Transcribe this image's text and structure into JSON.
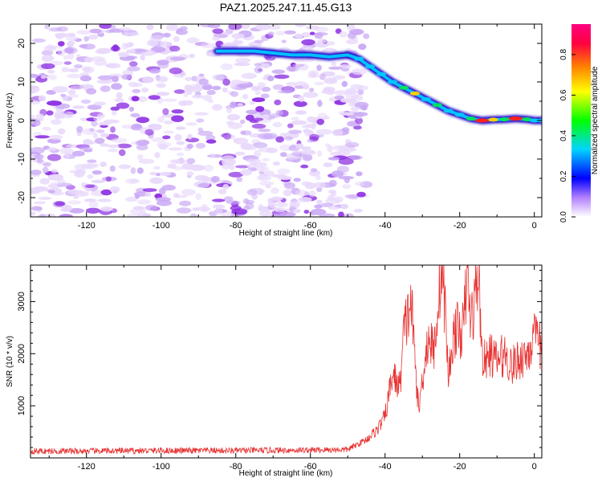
{
  "title": "PAZ1.2025.247.11.45.G13",
  "colors": {
    "snr_line": "#e83232",
    "background": "#ffffff",
    "noise_low": "#e8d8fb",
    "noise_mid": "#c9a8f5",
    "noise_high": "#8a2be2",
    "colorbar": [
      "#ffffff",
      "#7b00ff",
      "#0000ff",
      "#00d5ff",
      "#00ff00",
      "#ffff00",
      "#ff8000",
      "#ff0040",
      "#ff0080"
    ]
  },
  "chart_data": [
    {
      "type": "heatmap",
      "title": "PAZ1.2025.247.11.45.G13",
      "xlabel": "Height of straight line (km)",
      "ylabel": "Frequency (Hz)",
      "xlim": [
        -135,
        2
      ],
      "ylim": [
        -25,
        25
      ],
      "xticks": [
        -120,
        -100,
        -80,
        -60,
        -40,
        -20,
        0
      ],
      "yticks": [
        -20,
        -10,
        0,
        10,
        20
      ],
      "colorbar": {
        "label": "Normalized spectral amplitude",
        "ticks": [
          "0.0",
          "0.2",
          "0.4",
          "0.6",
          "0.8"
        ],
        "range": [
          0,
          0.95
        ]
      },
      "noise_region_x": [
        -135,
        -45
      ],
      "ridge": {
        "x": [
          -85,
          -80,
          -75,
          -70,
          -65,
          -60,
          -55,
          -50,
          -47,
          -44,
          -41,
          -38,
          -35,
          -32,
          -29,
          -26,
          -23,
          -20,
          -17,
          -14,
          -11,
          -8,
          -5,
          -2,
          0,
          2
        ],
        "y": [
          18,
          18,
          18,
          17.5,
          17,
          17,
          16.5,
          17,
          16,
          14,
          12,
          10,
          8.5,
          7,
          5.5,
          4,
          2.5,
          1.5,
          0.5,
          0,
          0.2,
          0.3,
          0.5,
          0.3,
          0,
          0
        ],
        "amplitude": [
          0.25,
          0.25,
          0.2,
          0.3,
          0.25,
          0.3,
          0.35,
          0.4,
          0.45,
          0.5,
          0.45,
          0.5,
          0.55,
          0.7,
          0.5,
          0.55,
          0.45,
          0.5,
          0.6,
          0.9,
          0.65,
          0.6,
          0.9,
          0.55,
          0.5,
          0.5
        ]
      }
    },
    {
      "type": "line",
      "xlabel": "Height of straight line (km)",
      "ylabel": "SNR (10 * v/v)",
      "xlim": [
        -135,
        2
      ],
      "ylim": [
        0,
        3700
      ],
      "xticks": [
        -120,
        -100,
        -80,
        -60,
        -40,
        -20,
        0
      ],
      "yticks": [
        1000,
        2000,
        3000
      ],
      "envelope": {
        "x": [
          -135,
          -120,
          -100,
          -80,
          -60,
          -50,
          -45,
          -42,
          -40,
          -38,
          -36,
          -35,
          -34,
          -33,
          -32,
          -31,
          -30,
          -29,
          -28,
          -27,
          -26,
          -25,
          -24,
          -23,
          -22,
          -21,
          -20,
          -19,
          -18,
          -17,
          -16,
          -15,
          -14,
          -13,
          -12,
          -10,
          -8,
          -6,
          -4,
          -2,
          0,
          2
        ],
        "y": [
          130,
          130,
          140,
          140,
          150,
          160,
          350,
          550,
          800,
          1600,
          1350,
          2400,
          2700,
          3000,
          1900,
          900,
          1500,
          2100,
          2300,
          2000,
          2800,
          3600,
          3000,
          1500,
          2200,
          2500,
          2400,
          2500,
          3500,
          2600,
          3000,
          3600,
          2000,
          1800,
          2000,
          1850,
          2000,
          1750,
          1900,
          2000,
          2300,
          2100
        ]
      }
    }
  ]
}
